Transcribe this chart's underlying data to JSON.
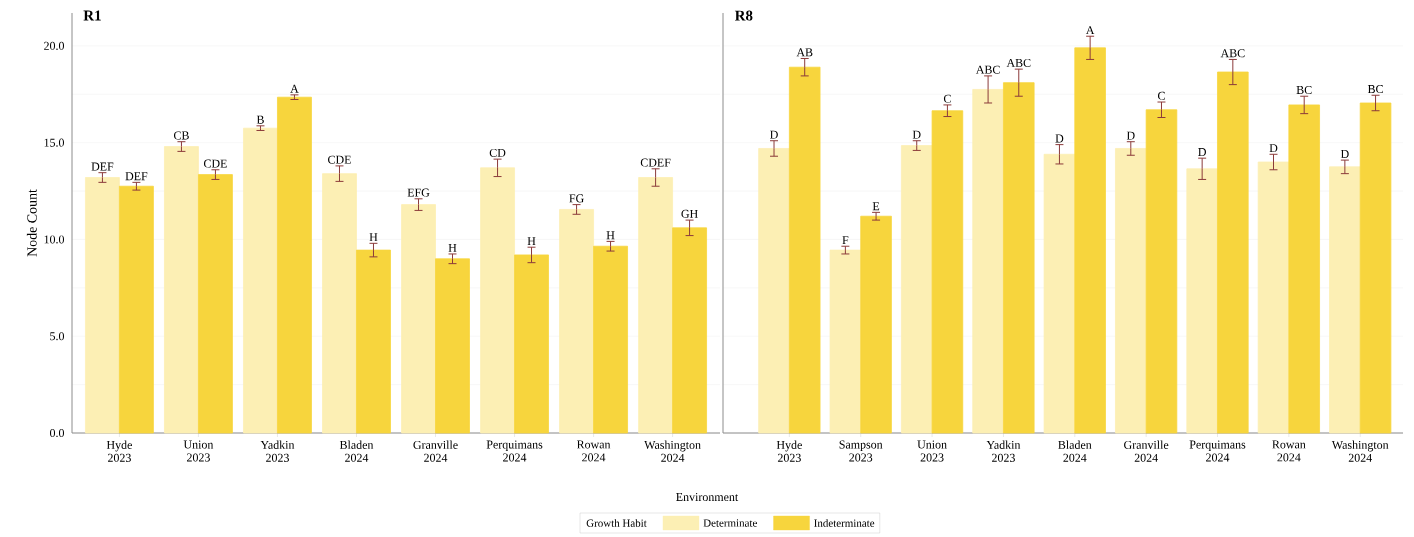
{
  "chart_data": [
    {
      "type": "bar",
      "title": "R1",
      "xlabel": "Environment",
      "ylabel": "Node Count",
      "legend_title": "Growth Habit",
      "legend": "bottom",
      "grid": "y",
      "categories": [
        "Hyde 2023",
        "Union 2023",
        "Yadkin 2023",
        "Bladen 2024",
        "Granville 2024",
        "Perquimans 2024",
        "Rowan 2024",
        "Washington 2024"
      ],
      "ylim": [
        0,
        21.7
      ],
      "yticks": [
        {
          "value": 0,
          "label": "0.0"
        },
        {
          "value": 2.5,
          "label": null
        },
        {
          "value": 5,
          "label": "5.0"
        },
        {
          "value": 7.5,
          "label": null
        },
        {
          "value": 10,
          "label": "10.0"
        },
        {
          "value": 12.5,
          "label": null
        },
        {
          "value": 15,
          "label": "15.0"
        },
        {
          "value": 17.5,
          "label": null
        },
        {
          "value": 20,
          "label": "20.0"
        }
      ],
      "series": [
        {
          "name": "Determinate",
          "color": "#fcefb4",
          "values": [
            13.2,
            14.8,
            15.75,
            13.4,
            11.8,
            13.7,
            11.55,
            13.2
          ],
          "errors": [
            0.25,
            0.25,
            0.12,
            0.4,
            0.3,
            0.45,
            0.25,
            0.45
          ],
          "value_labels": [
            "DEF",
            "CB",
            "B",
            "CDE",
            "EFG",
            "CD",
            "FG",
            "CDEF"
          ]
        },
        {
          "name": "Indeterminate",
          "color": "#f7d53d",
          "values": [
            12.75,
            13.35,
            17.35,
            9.45,
            9.0,
            9.2,
            9.65,
            10.6
          ],
          "errors": [
            0.2,
            0.25,
            0.12,
            0.35,
            0.25,
            0.4,
            0.25,
            0.4
          ],
          "value_labels": [
            "DEF",
            "CDE",
            "A",
            "H",
            "H",
            "H",
            "H",
            "GH"
          ]
        }
      ]
    },
    {
      "type": "bar",
      "title": "R8",
      "grid": "y",
      "tick_labels": "x",
      "categories": [
        "Hyde 2023",
        "Sampson 2023",
        "Union 2023",
        "Yadkin 2023",
        "Bladen 2024",
        "Granville 2024",
        "Perquimans 2024",
        "Rowan 2024",
        "Washington 2024"
      ],
      "ylim": [
        0,
        21.7
      ],
      "yticks": [
        {
          "value": 0,
          "label": null
        },
        {
          "value": 2.5,
          "label": null
        },
        {
          "value": 5,
          "label": null
        },
        {
          "value": 7.5,
          "label": null
        },
        {
          "value": 10,
          "label": null
        },
        {
          "value": 12.5,
          "label": null
        },
        {
          "value": 15,
          "label": null
        },
        {
          "value": 17.5,
          "label": null
        },
        {
          "value": 20,
          "label": null
        }
      ],
      "series": [
        {
          "color": "#fcefb4",
          "values": [
            14.7,
            9.45,
            14.85,
            17.75,
            14.4,
            14.7,
            13.65,
            14.0,
            13.75
          ],
          "errors": [
            0.4,
            0.2,
            0.25,
            0.7,
            0.5,
            0.35,
            0.55,
            0.4,
            0.35
          ],
          "value_labels": [
            "D",
            "F",
            "D",
            "ABC",
            "D",
            "D",
            "D",
            "D",
            "D"
          ]
        },
        {
          "color": "#f7d53d",
          "values": [
            18.9,
            11.2,
            16.65,
            18.1,
            19.9,
            16.7,
            18.65,
            16.95,
            17.05
          ],
          "errors": [
            0.45,
            0.2,
            0.3,
            0.7,
            0.6,
            0.4,
            0.65,
            0.45,
            0.4
          ],
          "value_labels": [
            "AB",
            "E",
            "C",
            "ABC",
            "A",
            "C",
            "ABC",
            "BC",
            "BC"
          ]
        }
      ]
    }
  ]
}
